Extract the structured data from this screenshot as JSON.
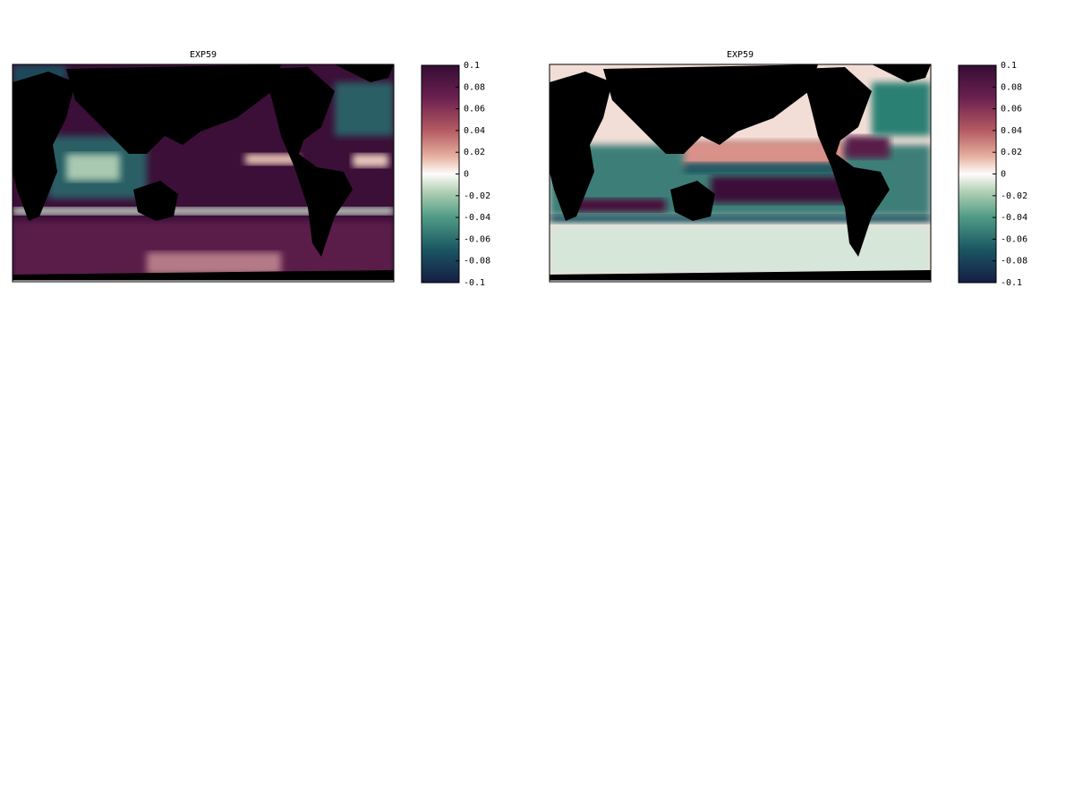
{
  "panels": [
    {
      "title": "EXP59",
      "colorbar": {
        "lim": [
          -0.1,
          0.1
        ],
        "ticks": [
          0.1,
          0.08,
          0.06,
          0.04,
          0.02,
          0,
          -0.02,
          -0.04,
          -0.06,
          -0.08,
          -0.1
        ]
      }
    },
    {
      "title": "EXP59",
      "colorbar": {
        "lim": [
          -0.1,
          0.1
        ],
        "ticks": [
          0.1,
          0.08,
          0.06,
          0.04,
          0.02,
          0,
          -0.02,
          -0.04,
          -0.06,
          -0.08,
          -0.1
        ]
      }
    }
  ]
}
